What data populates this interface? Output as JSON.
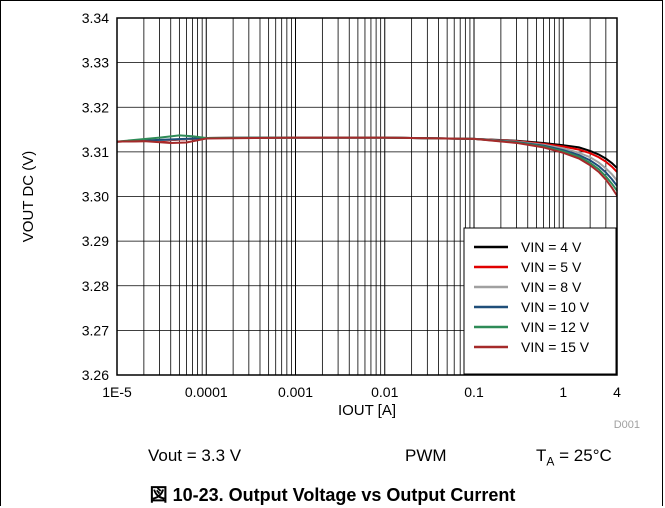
{
  "chart_data": {
    "type": "line",
    "xlabel": "IOUT [A]",
    "ylabel": "VOUT DC (V)",
    "x_scale": "log",
    "xlim": [
      1e-05,
      4
    ],
    "ylim": [
      3.26,
      3.34
    ],
    "x_tick_values": [
      1e-05,
      0.0001,
      0.001,
      0.01,
      0.1,
      1,
      4
    ],
    "x_tick_labels": [
      "1E-5",
      "0.0001",
      "0.001",
      "0.01",
      "0.1",
      "1",
      "4"
    ],
    "y_tick_labels": [
      "3.26",
      "3.27",
      "3.28",
      "3.29",
      "3.30",
      "3.31",
      "3.32",
      "3.33",
      "3.34"
    ],
    "grid": true,
    "legend_position": "bottom-right",
    "chart_id": "D001",
    "series": [
      {
        "name": "VIN = 4 V",
        "color": "#000000",
        "x": [
          1e-05,
          3e-05,
          0.0001,
          0.001,
          0.01,
          0.1,
          0.3,
          0.6,
          1,
          1.5,
          2,
          2.5,
          3,
          3.5,
          4
        ],
        "y": [
          3.3123,
          3.3125,
          3.3131,
          3.3132,
          3.3132,
          3.3129,
          3.3125,
          3.312,
          3.3115,
          3.311,
          3.3102,
          3.3094,
          3.3085,
          3.3075,
          3.3064
        ]
      },
      {
        "name": "VIN = 5 V",
        "color": "#e00000",
        "x": [
          1e-05,
          3e-05,
          0.0001,
          0.001,
          0.01,
          0.1,
          0.3,
          0.6,
          1,
          1.5,
          2,
          2.5,
          3,
          3.5,
          4
        ],
        "y": [
          3.3123,
          3.3125,
          3.3131,
          3.3132,
          3.3132,
          3.3129,
          3.3124,
          3.3118,
          3.3112,
          3.3105,
          3.3097,
          3.3088,
          3.3078,
          3.3067,
          3.3055
        ]
      },
      {
        "name": "VIN = 8 V",
        "color": "#a0a0a0",
        "x": [
          1e-05,
          3e-05,
          0.0001,
          0.001,
          0.01,
          0.1,
          0.3,
          0.6,
          1,
          1.5,
          2,
          2.5,
          3,
          3.5,
          4
        ],
        "y": [
          3.3123,
          3.3126,
          3.3131,
          3.3132,
          3.3132,
          3.3129,
          3.3123,
          3.3116,
          3.3108,
          3.3098,
          3.3088,
          3.3076,
          3.3063,
          3.305,
          3.3036
        ]
      },
      {
        "name": "VIN = 10 V",
        "color": "#1f4e79",
        "x": [
          1e-05,
          3e-05,
          0.0001,
          0.001,
          0.01,
          0.1,
          0.3,
          0.6,
          1,
          1.5,
          2,
          2.5,
          3,
          3.5,
          4
        ],
        "y": [
          3.3123,
          3.3127,
          3.3131,
          3.3132,
          3.3132,
          3.3129,
          3.3122,
          3.3114,
          3.3104,
          3.3093,
          3.3081,
          3.3068,
          3.3054,
          3.3039,
          3.3024
        ]
      },
      {
        "name": "VIN = 12 V",
        "color": "#2e8b57",
        "x": [
          1e-05,
          3e-05,
          5e-05,
          7e-05,
          0.0001,
          0.001,
          0.01,
          0.1,
          0.3,
          0.6,
          1,
          1.5,
          2,
          2.5,
          3,
          3.5,
          4
        ],
        "y": [
          3.3123,
          3.3132,
          3.3137,
          3.3135,
          3.3131,
          3.3132,
          3.3132,
          3.3129,
          3.3121,
          3.3112,
          3.3101,
          3.3089,
          3.3075,
          3.3061,
          3.3045,
          3.3029,
          3.3013
        ]
      },
      {
        "name": "VIN = 15 V",
        "color": "#a52a2a",
        "x": [
          1e-05,
          2e-05,
          4e-05,
          6e-05,
          0.0001,
          0.001,
          0.01,
          0.1,
          0.3,
          0.6,
          1,
          1.5,
          2,
          2.5,
          3,
          3.5,
          4
        ],
        "y": [
          3.3123,
          3.3124,
          3.312,
          3.3121,
          3.313,
          3.3132,
          3.3132,
          3.3129,
          3.312,
          3.311,
          3.3098,
          3.3085,
          3.307,
          3.3055,
          3.3038,
          3.302,
          3.3002
        ]
      }
    ]
  },
  "conditions": {
    "vout": "Vout = 3.3 V",
    "mode": "PWM",
    "ta_main": "T",
    "ta_sub": "A",
    "ta_value": " = 25°C"
  },
  "caption": "図 10-23. Output Voltage vs Output Current"
}
